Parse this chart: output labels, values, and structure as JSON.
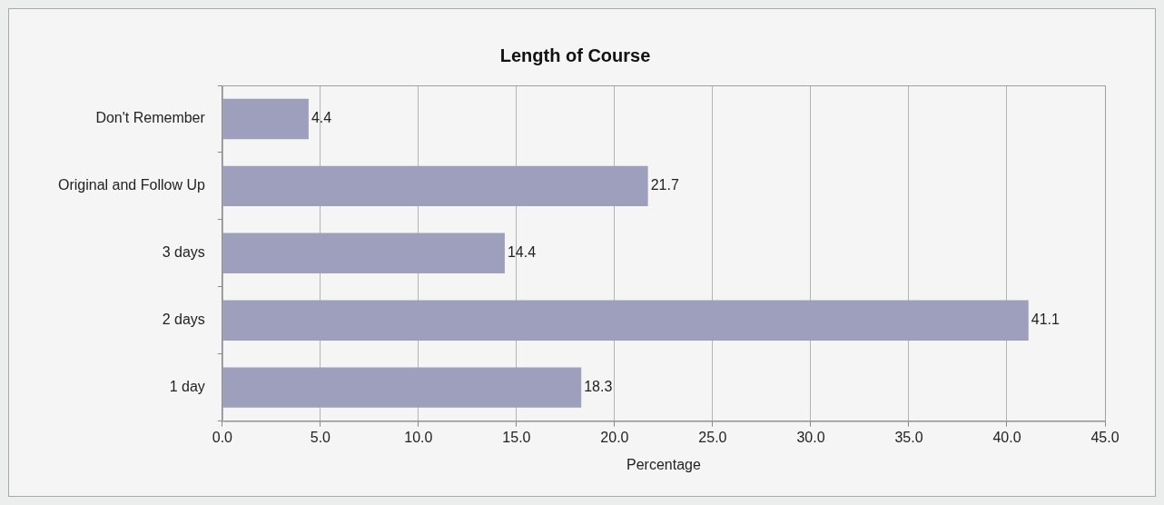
{
  "chart_data": {
    "type": "bar",
    "orientation": "horizontal",
    "title": "Length of Course",
    "xlabel": "Percentage",
    "categories": [
      "Don't Remember",
      "Original and Follow Up",
      "3 days",
      "2 days",
      "1 day"
    ],
    "values": [
      4.4,
      21.7,
      14.4,
      41.1,
      18.3
    ],
    "color": "#9e9fbd",
    "xlim": [
      0,
      45
    ],
    "xticks": [
      {
        "value": 0,
        "label": "0.0"
      },
      {
        "value": 5,
        "label": "5.0"
      },
      {
        "value": 10,
        "label": "10.0"
      },
      {
        "value": 15,
        "label": "15.0"
      },
      {
        "value": 20,
        "label": "20.0"
      },
      {
        "value": 25,
        "label": "25.0"
      },
      {
        "value": 30,
        "label": "30.0"
      },
      {
        "value": 35,
        "label": "35.0"
      },
      {
        "value": 40,
        "label": "40.0"
      },
      {
        "value": 45,
        "label": "45.0"
      }
    ],
    "grid": "x",
    "data_labels": true,
    "legend": false
  }
}
